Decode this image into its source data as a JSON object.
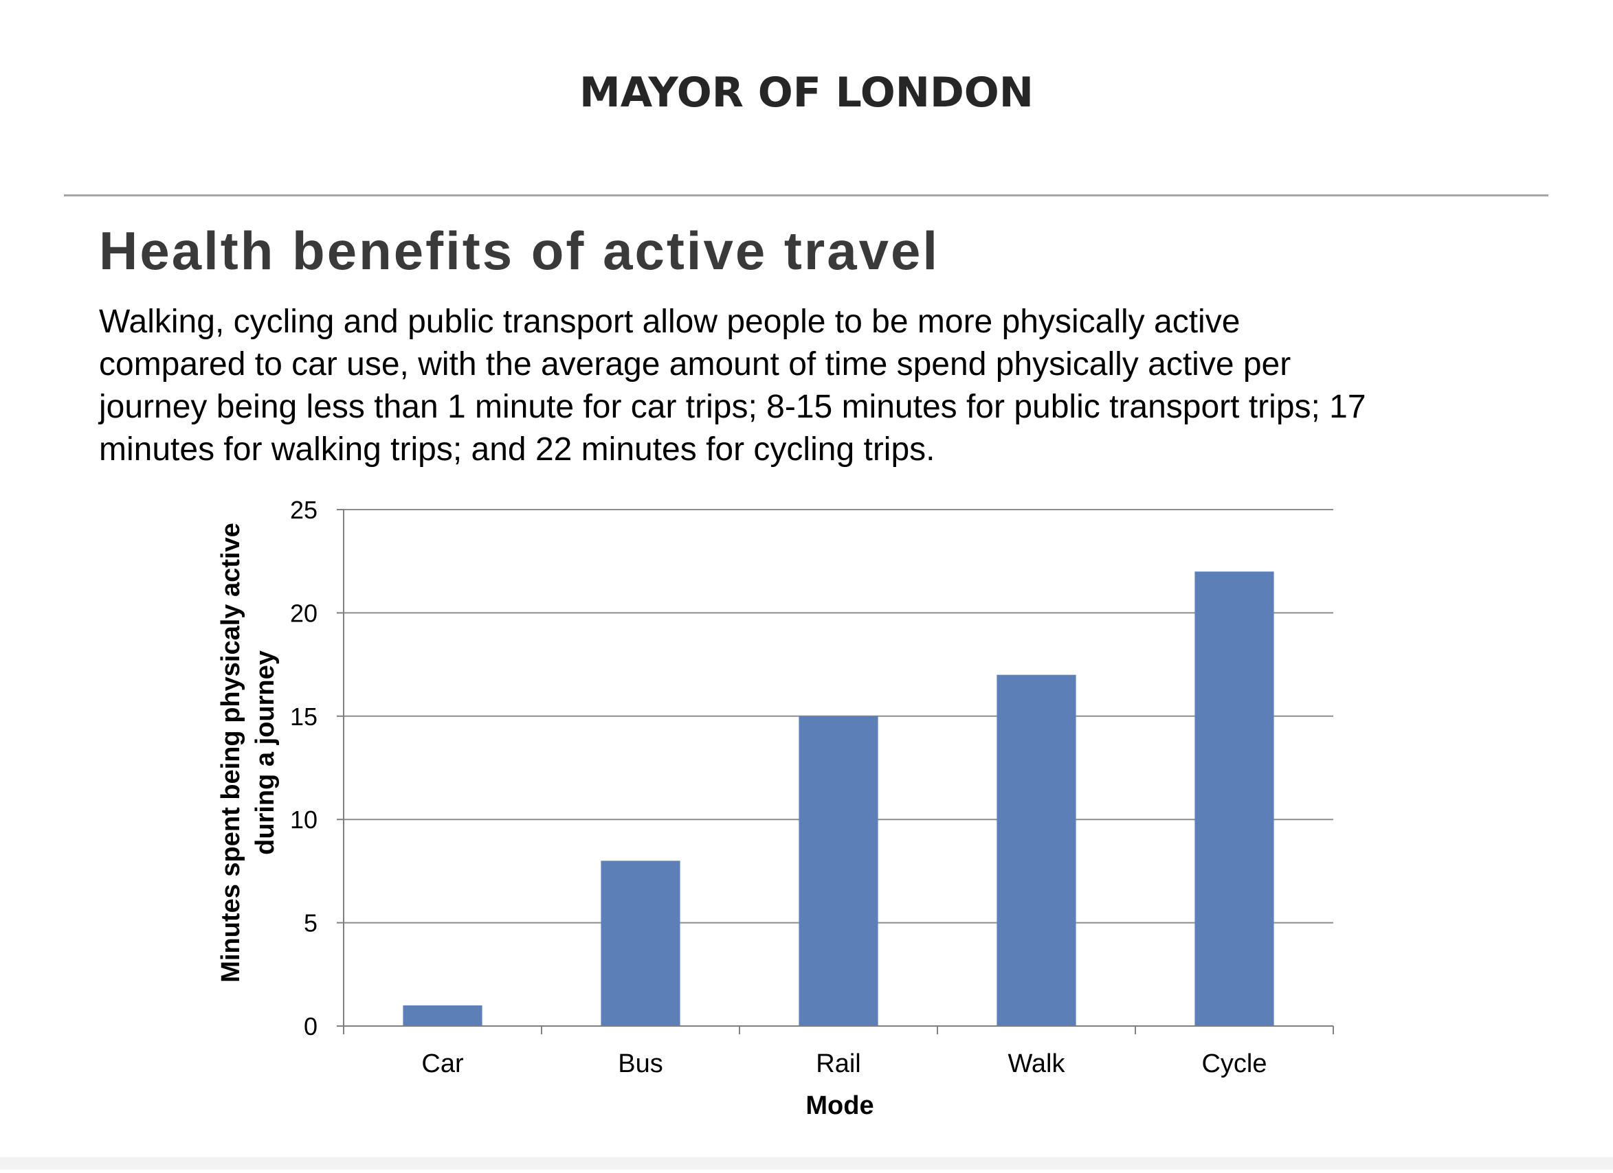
{
  "header": {
    "brand": "MAYOR OF LONDON"
  },
  "page": {
    "title": "Health benefits of active travel",
    "intro_lines": [
      "Walking, cycling and public transport allow people to be more physically active",
      "compared to car use, with the average amount of time spend physically active per",
      "journey being less than 1 minute for car trips; 8-15 minutes for public transport trips; 17",
      "minutes for walking trips; and 22 minutes for cycling trips."
    ]
  },
  "colors": {
    "bar": "#5b80b8",
    "grid": "#8c8c8c",
    "axis": "#7f7f7f",
    "title": "#3a3a3a"
  },
  "chart_data": {
    "type": "bar",
    "title": "",
    "xlabel": "Mode",
    "ylabel_lines": [
      "Minutes spent being physicaly active",
      "during a journey"
    ],
    "categories": [
      "Car",
      "Bus",
      "Rail",
      "Walk",
      "Cycle"
    ],
    "values": [
      1,
      8,
      15,
      17,
      22
    ],
    "ylim": [
      0,
      25
    ],
    "yticks": [
      0,
      5,
      10,
      15,
      20,
      25
    ],
    "grid": true,
    "legend": "none"
  }
}
